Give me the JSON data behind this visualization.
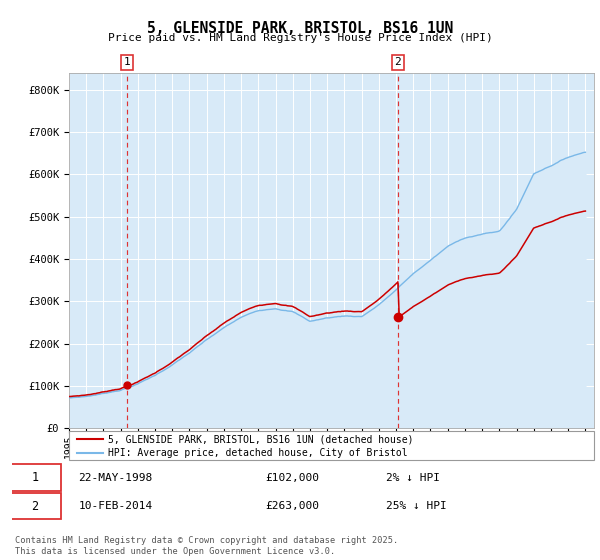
{
  "title": "5, GLENSIDE PARK, BRISTOL, BS16 1UN",
  "subtitle": "Price paid vs. HM Land Registry's House Price Index (HPI)",
  "ylabel_ticks": [
    "£0",
    "£100K",
    "£200K",
    "£300K",
    "£400K",
    "£500K",
    "£600K",
    "£700K",
    "£800K"
  ],
  "ytick_values": [
    0,
    100000,
    200000,
    300000,
    400000,
    500000,
    600000,
    700000,
    800000
  ],
  "ylim": [
    0,
    840000
  ],
  "xlim_start": 1995.0,
  "xlim_end": 2025.5,
  "sale1_year": 1998.38,
  "sale1_price": 102000,
  "sale2_year": 2014.11,
  "sale2_price": 263000,
  "hpi_color": "#7ab8e8",
  "hpi_fill_color": "#d8eaf8",
  "sale_color": "#cc0000",
  "vline_color": "#dd3333",
  "bg_color": "#ddeeff",
  "grid_color": "#bbccdd",
  "legend_label_sale": "5, GLENSIDE PARK, BRISTOL, BS16 1UN (detached house)",
  "legend_label_hpi": "HPI: Average price, detached house, City of Bristol",
  "annotation1": "22-MAY-1998",
  "annotation1_price": "£102,000",
  "annotation1_hpi": "2% ↓ HPI",
  "annotation2": "10-FEB-2014",
  "annotation2_price": "£263,000",
  "annotation2_hpi": "25% ↓ HPI",
  "footer": "Contains HM Land Registry data © Crown copyright and database right 2025.\nThis data is licensed under the Open Government Licence v3.0.",
  "xtick_years": [
    1995,
    1996,
    1997,
    1998,
    1999,
    2000,
    2001,
    2002,
    2003,
    2004,
    2005,
    2006,
    2007,
    2008,
    2009,
    2010,
    2011,
    2012,
    2013,
    2014,
    2015,
    2016,
    2017,
    2018,
    2019,
    2020,
    2021,
    2022,
    2023,
    2024,
    2025
  ],
  "hpi_anchors_x": [
    1995,
    1996,
    1997,
    1998,
    1999,
    2000,
    2001,
    2002,
    2003,
    2004,
    2005,
    2006,
    2007,
    2008,
    2009,
    2010,
    2011,
    2012,
    2013,
    2014,
    2015,
    2016,
    2017,
    2018,
    2019,
    2020,
    2021,
    2022,
    2023,
    2024,
    2025
  ],
  "hpi_anchors_y": [
    72000,
    76000,
    83000,
    92000,
    107000,
    127000,
    152000,
    180000,
    210000,
    238000,
    262000,
    278000,
    285000,
    278000,
    255000,
    263000,
    268000,
    267000,
    295000,
    330000,
    368000,
    400000,
    432000,
    453000,
    462000,
    468000,
    520000,
    605000,
    625000,
    645000,
    658000
  ],
  "noise_scale": 4500,
  "noise_seed": 7
}
